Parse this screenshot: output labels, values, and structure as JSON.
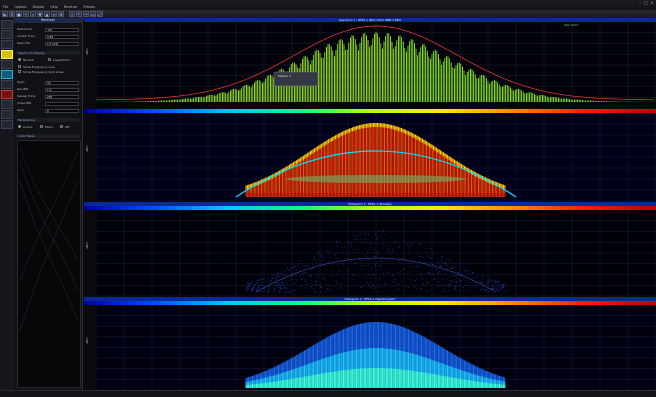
{
  "app": {
    "title": ""
  },
  "menu": [
    "File",
    "Options",
    "Display",
    "Help",
    "Receiver",
    "Presets"
  ],
  "toolbar": {
    "icons": [
      "play-icon",
      "pause-icon",
      "record-icon",
      "cursor-icon",
      "zoom-icon",
      "marker-icon",
      "peak-icon",
      "waterfall-icon",
      "settings-icon",
      "export-icon",
      "undo-icon",
      "redo-icon",
      "monitor-icon",
      "fullscreen-icon"
    ]
  },
  "panel": {
    "title": "Receiver",
    "rows": [
      {
        "label": "Reference",
        "value": "-20"
      },
      {
        "label": "Center Freq",
        "value": "0.85"
      },
      {
        "label": "Span Fre",
        "value": "1.5 GHz"
      }
    ],
    "sec1": "Spectrum Display",
    "opt1": "Normal",
    "opt2": "Logarithmic",
    "chk1": "Show Frequency Line",
    "chk2": "Show Frequency Grid Lines",
    "rows2": [
      {
        "label": "Span",
        "value": "35"
      },
      {
        "label": "Res BW",
        "value": "1.0"
      },
      {
        "label": "Sweep Time",
        "value": "256"
      },
      {
        "label": "Video BW",
        "value": ""
      },
      {
        "label": "Gain",
        "value": "0"
      }
    ],
    "sec2": "Persistence",
    "rad1": "Colors",
    "rad2": "Mono",
    "rad3": "Off",
    "list_title": "Color Table"
  },
  "plots": [
    {
      "title": "Spectrum 1 - RTSA 1 (Max Hold) RBW 1 MHz",
      "ylabel": "dBm",
      "type": "spectrum",
      "colorbar": false
    },
    {
      "title": "Waterfall 1 - RTSA 1 (Persistence)",
      "ylabel": "dBm",
      "type": "persist-hot",
      "colorbar": true
    },
    {
      "title": "Histogram 1 - RTSA 1 (Density)",
      "ylabel": "dBm",
      "type": "persist-dots",
      "colorbar": true,
      "rev": true
    },
    {
      "title": "Histogram 2 - RTSA 1 (Spectrogram)",
      "ylabel": "dBm",
      "type": "persist-cool",
      "colorbar": true
    }
  ],
  "marker_info": "Marker 1",
  "legend_top_right": "Max Hold",
  "status": {
    "left": "",
    "right": ""
  },
  "colors": {
    "accent": "#0a2a9a",
    "trace_green": "#7cff2a",
    "trace_red": "#ff3a3a"
  }
}
